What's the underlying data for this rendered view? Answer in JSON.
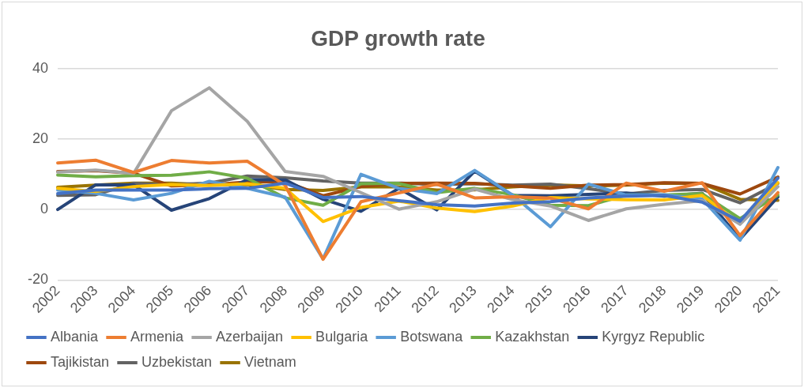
{
  "chart_data": {
    "type": "line",
    "title": "GDP growth rate",
    "categories": [
      "2002",
      "2003",
      "2004",
      "2005",
      "2006",
      "2007",
      "2008",
      "2009",
      "2010",
      "2011",
      "2012",
      "2013",
      "2014",
      "2015",
      "2016",
      "2017",
      "2018",
      "2019",
      "2020",
      "2021"
    ],
    "series": [
      {
        "name": "Albania",
        "color": "#4472c4",
        "values": [
          4.5,
          5.5,
          5.5,
          5.5,
          5.9,
          6.0,
          7.5,
          3.4,
          3.7,
          2.5,
          1.4,
          1.0,
          1.8,
          2.2,
          3.3,
          3.8,
          4.0,
          2.1,
          -3.3,
          8.9
        ]
      },
      {
        "name": "Armenia",
        "color": "#ed7d31",
        "values": [
          13.2,
          14.0,
          10.5,
          13.9,
          13.2,
          13.7,
          6.9,
          -14.1,
          2.2,
          4.7,
          7.2,
          3.3,
          3.6,
          3.2,
          0.2,
          7.5,
          5.2,
          7.6,
          -7.4,
          4.8
        ]
      },
      {
        "name": "Azerbaijan",
        "color": "#a5a5a5",
        "values": [
          10.6,
          11.2,
          10.2,
          28.0,
          34.5,
          25.0,
          10.8,
          9.4,
          4.8,
          0.1,
          2.2,
          5.8,
          2.8,
          1.0,
          -3.1,
          0.2,
          1.5,
          2.5,
          -4.2,
          6.5
        ]
      },
      {
        "name": "Bulgaria",
        "color": "#ffc000",
        "values": [
          6.0,
          5.1,
          6.5,
          7.1,
          6.8,
          7.3,
          6.0,
          -3.4,
          0.6,
          2.4,
          0.4,
          -0.6,
          1.0,
          3.4,
          3.0,
          2.8,
          2.7,
          4.0,
          -4.0,
          7.6
        ]
      },
      {
        "name": "Botswana",
        "color": "#5b9bd5",
        "values": [
          5.5,
          4.6,
          2.7,
          4.6,
          8.0,
          6.0,
          3.5,
          -14.0,
          10.0,
          6.0,
          4.5,
          11.1,
          4.1,
          -4.9,
          7.2,
          4.1,
          4.2,
          3.0,
          -8.7,
          11.9
        ]
      },
      {
        "name": "Kazakhstan",
        "color": "#70ad47",
        "values": [
          9.8,
          9.3,
          9.6,
          9.7,
          10.7,
          8.9,
          3.3,
          1.2,
          7.3,
          7.4,
          4.8,
          6.0,
          4.2,
          1.2,
          1.1,
          4.1,
          4.1,
          4.5,
          -2.6,
          4.1
        ]
      },
      {
        "name": "Kyrgyz Republic",
        "color": "#264478",
        "values": [
          0.0,
          7.0,
          7.0,
          -0.2,
          3.1,
          8.5,
          8.4,
          2.9,
          -0.5,
          6.0,
          -0.1,
          10.9,
          4.0,
          3.9,
          4.3,
          4.7,
          3.8,
          4.6,
          -8.4,
          3.6
        ]
      },
      {
        "name": "Tajikistan",
        "color": "#9e480e",
        "values": [
          10.8,
          11.0,
          10.3,
          6.7,
          7.0,
          7.8,
          7.9,
          3.9,
          6.5,
          7.4,
          7.5,
          7.4,
          6.7,
          6.0,
          6.9,
          7.1,
          7.6,
          7.4,
          4.4,
          9.2
        ]
      },
      {
        "name": "Uzbekistan",
        "color": "#636363",
        "values": [
          4.0,
          4.2,
          7.4,
          7.0,
          7.5,
          9.5,
          9.0,
          8.1,
          7.5,
          7.5,
          7.1,
          7.3,
          6.9,
          7.2,
          5.9,
          4.4,
          5.4,
          5.7,
          1.9,
          7.4
        ]
      },
      {
        "name": "Vietnam",
        "color": "#997300",
        "values": [
          6.3,
          6.9,
          7.5,
          7.5,
          7.0,
          7.1,
          5.7,
          5.4,
          6.4,
          6.4,
          5.5,
          5.6,
          6.4,
          7.0,
          6.7,
          6.9,
          7.5,
          7.4,
          2.9,
          2.6
        ]
      }
    ],
    "ylim": [
      -20,
      40
    ],
    "yticks": [
      -20,
      0,
      20,
      40
    ],
    "grid": "y",
    "legend": "bottom",
    "marker": "none",
    "line_style": "solid"
  }
}
